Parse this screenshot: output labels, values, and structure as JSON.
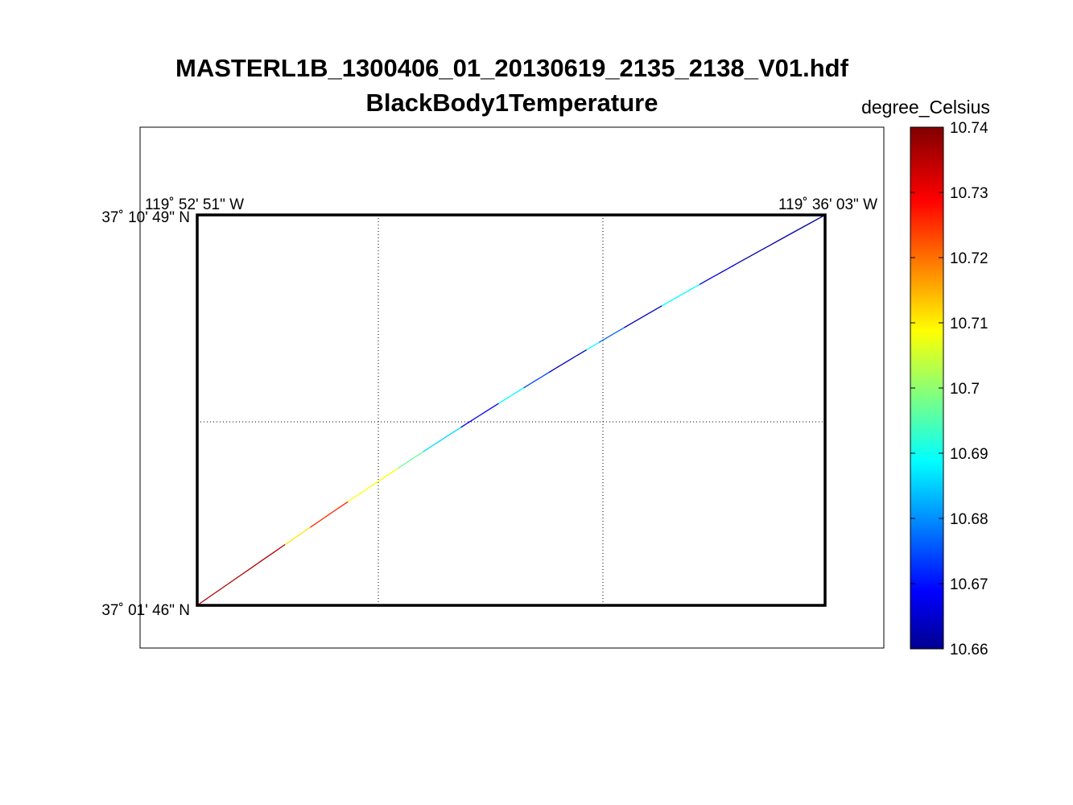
{
  "title": {
    "line1": "MASTERL1B_1300406_01_20130619_2135_2138_V01.hdf",
    "line2": "BlackBody1Temperature"
  },
  "colorbar": {
    "unit_label": "degree_Celsius",
    "min": 10.66,
    "max": 10.74,
    "tick_labels": [
      "10.74",
      "10.73",
      "10.72",
      "10.71",
      "10.7",
      "10.69",
      "10.68",
      "10.67",
      "10.66"
    ],
    "colormap": "jet"
  },
  "map": {
    "lon_labels": {
      "west": "119˚ 52' 51\" W",
      "east": "119˚ 36' 03\" W"
    },
    "lat_labels": {
      "north": "37˚ 10' 49\" N",
      "south": "37˚ 01' 46\" N"
    },
    "frame_color": "#000000",
    "grid_color": "#000000"
  },
  "chart_data": {
    "type": "line",
    "description": "Flight track colored by temperature value",
    "x_name": "longitude",
    "y_name": "latitude",
    "xlim": [
      "119˚ 52' 51\" W",
      "119˚ 36' 03\" W"
    ],
    "ylim": [
      "37˚ 01' 46\" N",
      "37˚ 10' 49\" N"
    ],
    "color_range": [
      10.66,
      10.74
    ],
    "track_segments": [
      {
        "from": 0.0,
        "to": 0.14,
        "value": 10.736
      },
      {
        "from": 0.14,
        "to": 0.18,
        "value": 10.712
      },
      {
        "from": 0.18,
        "to": 0.24,
        "value": 10.727
      },
      {
        "from": 0.24,
        "to": 0.32,
        "value": 10.71
      },
      {
        "from": 0.32,
        "to": 0.36,
        "value": 10.698
      },
      {
        "from": 0.36,
        "to": 0.42,
        "value": 10.687
      },
      {
        "from": 0.42,
        "to": 0.48,
        "value": 10.67
      },
      {
        "from": 0.48,
        "to": 0.52,
        "value": 10.69
      },
      {
        "from": 0.52,
        "to": 0.56,
        "value": 10.675
      },
      {
        "from": 0.56,
        "to": 0.62,
        "value": 10.665
      },
      {
        "from": 0.62,
        "to": 0.64,
        "value": 10.69
      },
      {
        "from": 0.64,
        "to": 0.68,
        "value": 10.678
      },
      {
        "from": 0.68,
        "to": 0.74,
        "value": 10.665
      },
      {
        "from": 0.74,
        "to": 0.8,
        "value": 10.69
      },
      {
        "from": 0.8,
        "to": 0.86,
        "value": 10.668
      },
      {
        "from": 0.86,
        "to": 1.0,
        "value": 10.663
      }
    ]
  }
}
